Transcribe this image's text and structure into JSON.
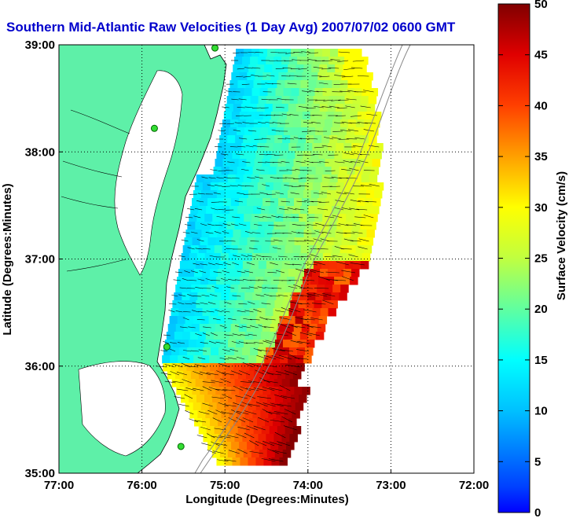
{
  "title": "Southern Mid-Atlantic Raw Velocities (1 Day Avg) 2007/07/02 0600 GMT",
  "map": {
    "xlabel": "Longitude (Degrees:Minutes)",
    "ylabel": "Latitude (Degrees:Minutes)",
    "x_ticks": [
      "77:00",
      "76:00",
      "75:00",
      "74:00",
      "73:00",
      "72:00"
    ],
    "y_ticks": [
      "39:00",
      "38:00",
      "37:00",
      "36:00",
      "35:00"
    ],
    "lon_range": [
      -77,
      -72
    ],
    "lat_range": [
      35,
      39
    ],
    "grid": "dotted",
    "land_color": "#5ef0a8",
    "water_color": "#ffffff"
  },
  "colorbar": {
    "label": "Surface Velocity (cm/s)",
    "ticks": [
      "50",
      "45",
      "40",
      "35",
      "30",
      "25",
      "20",
      "15",
      "10",
      "5",
      "0"
    ],
    "range": [
      0,
      50
    ],
    "colormap": "jet"
  },
  "stations": [
    {
      "lon": -75.12,
      "lat": 38.97
    },
    {
      "lon": -75.85,
      "lat": 38.22
    },
    {
      "lon": -75.7,
      "lat": 36.18
    },
    {
      "lon": -75.53,
      "lat": 35.25
    }
  ]
}
